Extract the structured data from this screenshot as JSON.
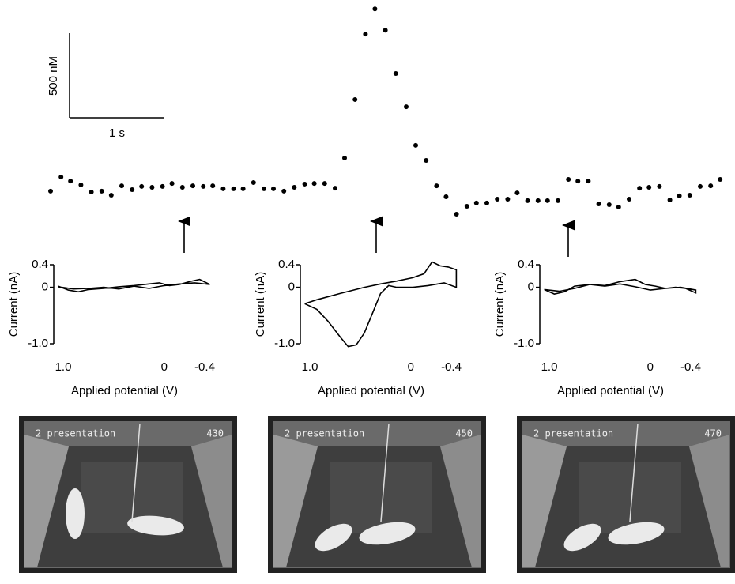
{
  "chart_data": [
    {
      "type": "scatter",
      "scalebar": {
        "x": {
          "value": 1,
          "label": "1 s"
        },
        "y": {
          "value": 500,
          "label": "500 nM"
        }
      },
      "color": "#000000",
      "x": [
        0,
        0.11,
        0.21,
        0.32,
        0.43,
        0.54,
        0.64,
        0.75,
        0.86,
        0.96,
        1.07,
        1.18,
        1.28,
        1.39,
        1.5,
        1.61,
        1.71,
        1.82,
        1.93,
        2.03,
        2.14,
        2.25,
        2.35,
        2.46,
        2.57,
        2.68,
        2.78,
        2.89,
        3.0,
        3.1,
        3.21,
        3.32,
        3.42,
        3.53,
        3.64,
        3.75,
        3.85,
        3.96,
        4.07,
        4.17,
        4.28,
        4.39,
        4.49,
        4.6,
        4.71,
        4.82,
        4.92,
        5.03,
        5.14,
        5.24,
        5.35,
        5.46,
        5.56,
        5.67,
        5.78,
        5.89,
        5.99,
        6.1,
        6.21,
        6.31,
        6.42,
        6.53,
        6.63,
        6.74,
        6.85,
        6.96,
        7.06
      ],
      "values": [
        -9,
        75,
        51,
        28,
        -14,
        -9,
        -33,
        23,
        0,
        19,
        14,
        19,
        37,
        14,
        23,
        19,
        23,
        5,
        5,
        5,
        42,
        5,
        5,
        -9,
        14,
        33,
        37,
        37,
        9,
        187,
        533,
        920,
        1069,
        943,
        687,
        490,
        262,
        173,
        23,
        -42,
        -145,
        -98,
        -79,
        -79,
        -56,
        -56,
        -19,
        -65,
        -65,
        -65,
        -65,
        61,
        51,
        51,
        -84,
        -89,
        -103,
        -56,
        9,
        14,
        19,
        -61,
        -37,
        -33,
        19,
        23,
        61
      ]
    },
    {
      "type": "line",
      "xlabel": "Applied potential (V)",
      "ylabel": "Current (nA)",
      "color": "#000000",
      "xlim": [
        1.0,
        -0.4
      ],
      "ylim": [
        -1.0,
        0.4
      ],
      "xticks": [
        {
          "value": 1.0,
          "label": "1.0"
        },
        0,
        -0.4
      ],
      "yticks": [
        0.4,
        0,
        {
          "value": -1.0,
          "label": "-1.0"
        }
      ],
      "x": [
        1.05,
        0.95,
        0.85,
        0.75,
        0.6,
        0.45,
        0.3,
        0.15,
        0.05,
        -0.05,
        -0.15,
        -0.25,
        -0.35,
        -0.45,
        -0.45,
        -0.3,
        -0.15,
        0,
        0.15,
        0.3,
        0.45,
        0.6,
        0.75,
        0.9,
        1.05
      ],
      "values": [
        0.02,
        -0.05,
        -0.08,
        -0.04,
        -0.02,
        0.01,
        0.03,
        0.06,
        0.08,
        0.03,
        0.05,
        0.1,
        0.14,
        0.05,
        0.05,
        0.08,
        0.06,
        0.03,
        -0.02,
        0.02,
        -0.03,
        0.0,
        -0.02,
        -0.03,
        0.01
      ]
    },
    {
      "type": "line",
      "xlabel": "Applied potential (V)",
      "ylabel": "Current (nA)",
      "color": "#000000",
      "xlim": [
        1.0,
        -0.4
      ],
      "ylim": [
        -1.0,
        0.4
      ],
      "xticks": [
        {
          "value": 1.0,
          "label": "1.0"
        },
        0,
        -0.4
      ],
      "yticks": [
        0.4,
        0,
        {
          "value": -1.0,
          "label": "-1.0"
        }
      ],
      "x": [
        1.05,
        0.93,
        0.7,
        0.46,
        0.3,
        0.14,
        -0.02,
        -0.13,
        -0.21,
        -0.29,
        -0.37,
        -0.45,
        -0.45,
        -0.33,
        -0.17,
        -0.02,
        0.14,
        0.22,
        0.3,
        0.38,
        0.46,
        0.54,
        0.62,
        0.7,
        0.82,
        0.93,
        1.05
      ],
      "values": [
        -0.29,
        -0.22,
        -0.11,
        0,
        0.06,
        0.11,
        0.17,
        0.24,
        0.45,
        0.38,
        0.36,
        0.31,
        0,
        0.08,
        0.03,
        0,
        0,
        0.03,
        -0.11,
        -0.46,
        -0.81,
        -1.02,
        -1.05,
        -0.88,
        -0.6,
        -0.39,
        -0.29
      ]
    },
    {
      "type": "line",
      "xlabel": "Applied potential (V)",
      "ylabel": "Current (nA)",
      "color": "#000000",
      "xlim": [
        1.0,
        -0.4
      ],
      "ylim": [
        -1.0,
        0.4
      ],
      "xticks": [
        {
          "value": 1.0,
          "label": "1.0"
        },
        0,
        -0.4
      ],
      "yticks": [
        0.4,
        0,
        {
          "value": -1.0,
          "label": "-1.0"
        }
      ],
      "x": [
        1.05,
        0.95,
        0.85,
        0.75,
        0.6,
        0.45,
        0.3,
        0.15,
        0.05,
        -0.05,
        -0.15,
        -0.25,
        -0.35,
        -0.45,
        -0.45,
        -0.3,
        -0.15,
        0,
        0.15,
        0.3,
        0.45,
        0.6,
        0.75,
        0.9,
        1.05
      ],
      "values": [
        -0.04,
        -0.12,
        -0.08,
        0.02,
        0.05,
        0.03,
        0.1,
        0.14,
        0.05,
        0.02,
        -0.02,
        0.0,
        -0.02,
        -0.1,
        -0.05,
        0.0,
        -0.02,
        -0.05,
        0.01,
        0.06,
        0.02,
        0.05,
        -0.02,
        -0.07,
        -0.04
      ]
    }
  ],
  "photos": [
    {
      "caption": "2 presentation",
      "frame": "430"
    },
    {
      "caption": "2 presentation",
      "frame": "450"
    },
    {
      "caption": "2 presentation",
      "frame": "470"
    }
  ]
}
